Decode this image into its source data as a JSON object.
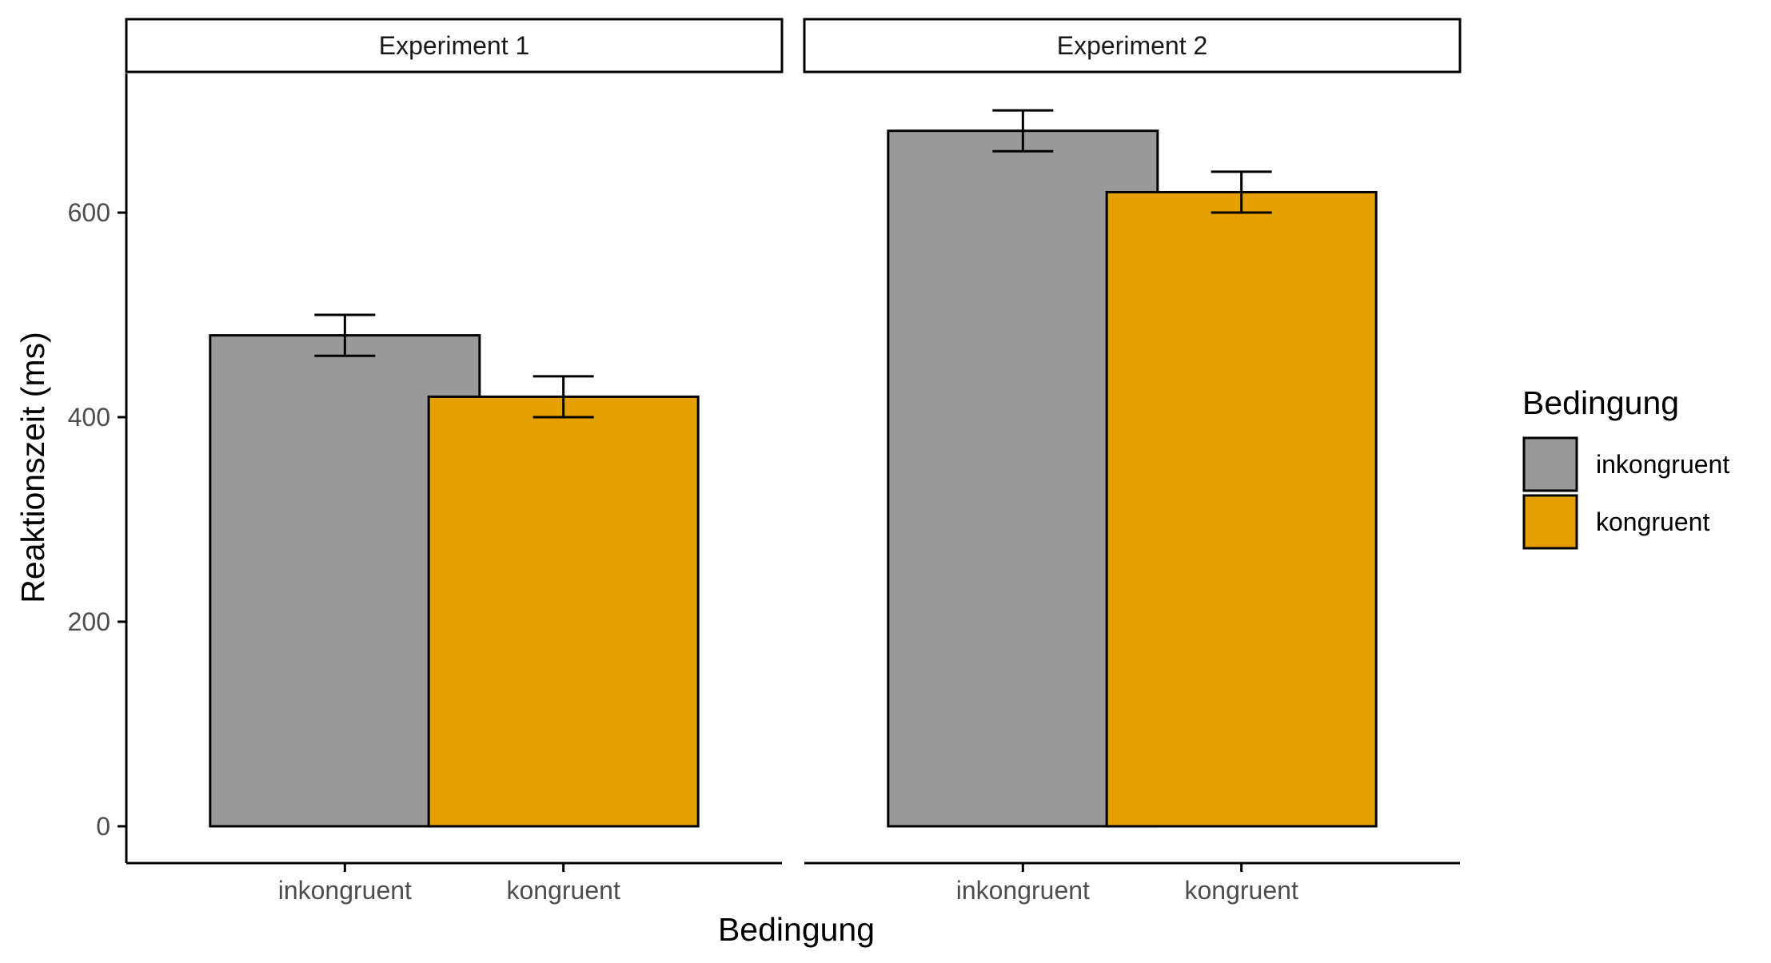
{
  "chart_data": {
    "type": "bar",
    "panels": [
      "Experiment 1",
      "Experiment 2"
    ],
    "categories": [
      "inkongruent",
      "kongruent"
    ],
    "series": [
      {
        "panel": "Experiment 1",
        "values": [
          480,
          420
        ],
        "error_low": [
          460,
          400
        ],
        "error_high": [
          500,
          440
        ]
      },
      {
        "panel": "Experiment 2",
        "values": [
          680,
          620
        ],
        "error_low": [
          660,
          600
        ],
        "error_high": [
          700,
          640
        ]
      }
    ],
    "colors": {
      "inkongruent": "#999999",
      "kongruent": "#E69F00"
    },
    "xlabel": "Bedingung",
    "ylabel": "Reaktionszeit (ms)",
    "yticks": [
      0,
      200,
      400,
      600
    ],
    "ylim": [
      -36,
      736
    ],
    "grid": false,
    "legend": {
      "title": "Bedingung",
      "items": [
        "inkongruent",
        "kongruent"
      ],
      "placement": "right"
    }
  }
}
